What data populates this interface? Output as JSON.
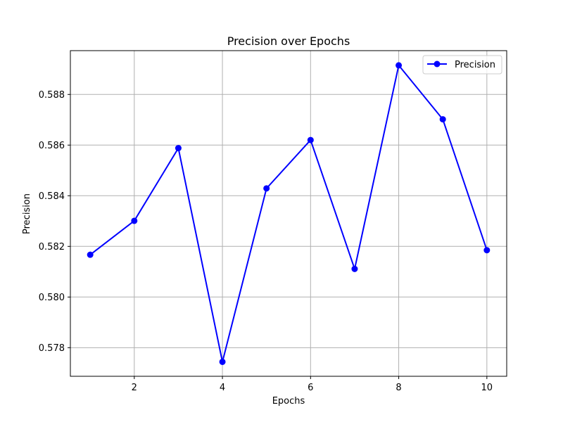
{
  "chart_data": {
    "type": "line",
    "title": "Precision over Epochs",
    "xlabel": "Epochs",
    "ylabel": "Precision",
    "xlim": [
      0.55,
      10.45
    ],
    "ylim": [
      0.57687,
      0.58973
    ],
    "xticks": [
      2,
      4,
      6,
      8,
      10
    ],
    "xtick_labels": [
      "2",
      "4",
      "6",
      "8",
      "10"
    ],
    "yticks": [
      0.578,
      0.58,
      0.582,
      0.584,
      0.586,
      0.588
    ],
    "ytick_labels": [
      "0.578",
      "0.580",
      "0.582",
      "0.584",
      "0.586",
      "0.588"
    ],
    "grid": true,
    "legend": {
      "position": "upper right",
      "entries": [
        "Precision"
      ]
    },
    "series": [
      {
        "name": "Precision",
        "color": "#0000ff",
        "marker": "circle",
        "x": [
          1,
          2,
          3,
          4,
          5,
          6,
          7,
          8,
          9,
          10
        ],
        "values": [
          0.58167,
          0.58301,
          0.58588,
          0.57744,
          0.58429,
          0.5862,
          0.58111,
          0.58915,
          0.58702,
          0.58185
        ]
      }
    ]
  }
}
